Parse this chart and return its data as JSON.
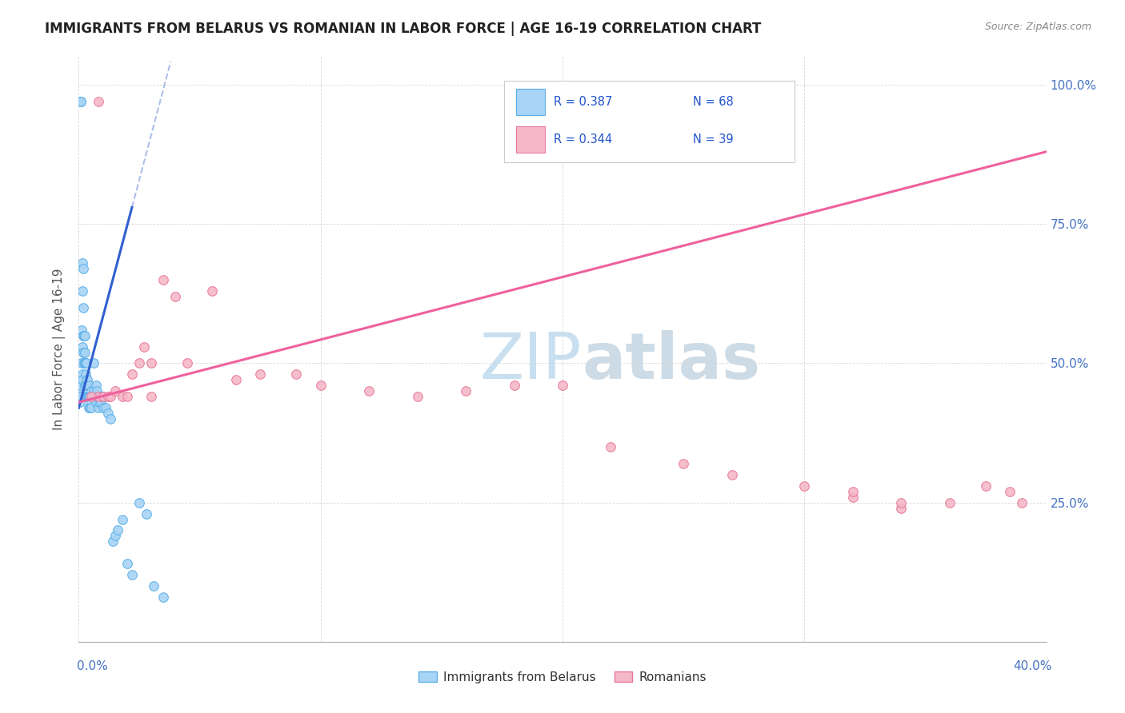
{
  "title": "IMMIGRANTS FROM BELARUS VS ROMANIAN IN LABOR FORCE | AGE 16-19 CORRELATION CHART",
  "source": "Source: ZipAtlas.com",
  "ylabel": "In Labor Force | Age 16-19",
  "legend_belarus": "Immigrants from Belarus",
  "legend_romanian": "Romanians",
  "R_belarus": 0.387,
  "N_belarus": 68,
  "R_romanian": 0.344,
  "N_romanian": 39,
  "belarus_color": "#a8d4f5",
  "belarus_edge": "#5aaee8",
  "romanian_color": "#f5b8c8",
  "romanian_edge": "#e87898",
  "trend_belarus_color": "#3060d0",
  "trend_romanian_color": "#f060a0",
  "legend_text_color": "#2255cc",
  "watermark_color": "#c8dff0",
  "background_color": "#ffffff",
  "grid_color": "#d8d8d8",
  "title_color": "#222222",
  "source_color": "#888888",
  "axis_label_color": "#4472C4",
  "ylabel_color": "#555555",
  "xlim": [
    0.0,
    0.4
  ],
  "ylim": [
    0.0,
    1.05
  ],
  "ytick_vals": [
    0.0,
    0.25,
    0.5,
    0.75,
    1.0
  ],
  "ytick_labels": [
    "",
    "25.0%",
    "50.0%",
    "75.0%",
    "100.0%"
  ],
  "bel_x": [
    0.0002,
    0.0004,
    0.0006,
    0.0006,
    0.0008,
    0.001,
    0.001,
    0.0012,
    0.0012,
    0.0014,
    0.0015,
    0.0015,
    0.0016,
    0.0016,
    0.0018,
    0.0018,
    0.002,
    0.002,
    0.0022,
    0.0022,
    0.0024,
    0.0025,
    0.0025,
    0.0026,
    0.0028,
    0.003,
    0.003,
    0.0032,
    0.0034,
    0.0035,
    0.0036,
    0.0038,
    0.004,
    0.004,
    0.0042,
    0.0044,
    0.0046,
    0.005,
    0.005,
    0.0052,
    0.0055,
    0.006,
    0.006,
    0.0065,
    0.007,
    0.007,
    0.0075,
    0.008,
    0.008,
    0.0085,
    0.009,
    0.009,
    0.0095,
    0.01,
    0.01,
    0.011,
    0.012,
    0.013,
    0.014,
    0.015,
    0.016,
    0.018,
    0.02,
    0.022,
    0.025,
    0.028,
    0.031,
    0.035
  ],
  "bel_y": [
    0.44,
    0.45,
    0.43,
    0.46,
    0.44,
    0.97,
    0.97,
    0.56,
    0.5,
    0.48,
    0.53,
    0.47,
    0.68,
    0.63,
    0.55,
    0.52,
    0.67,
    0.6,
    0.55,
    0.5,
    0.52,
    0.55,
    0.5,
    0.46,
    0.48,
    0.5,
    0.46,
    0.5,
    0.46,
    0.44,
    0.47,
    0.44,
    0.46,
    0.44,
    0.42,
    0.44,
    0.42,
    0.45,
    0.43,
    0.42,
    0.44,
    0.5,
    0.45,
    0.44,
    0.46,
    0.43,
    0.45,
    0.44,
    0.42,
    0.43,
    0.44,
    0.43,
    0.44,
    0.44,
    0.42,
    0.42,
    0.41,
    0.4,
    0.18,
    0.19,
    0.2,
    0.22,
    0.14,
    0.12,
    0.25,
    0.23,
    0.1,
    0.08
  ],
  "rom_x": [
    0.008,
    0.01,
    0.012,
    0.013,
    0.015,
    0.018,
    0.02,
    0.022,
    0.025,
    0.027,
    0.03,
    0.03,
    0.035,
    0.04,
    0.045,
    0.055,
    0.065,
    0.075,
    0.09,
    0.1,
    0.12,
    0.14,
    0.16,
    0.18,
    0.2,
    0.22,
    0.25,
    0.27,
    0.3,
    0.32,
    0.34,
    0.36,
    0.375,
    0.385,
    0.39,
    0.005,
    0.008,
    0.32,
    0.34
  ],
  "rom_y": [
    0.44,
    0.44,
    0.44,
    0.44,
    0.45,
    0.44,
    0.44,
    0.48,
    0.5,
    0.53,
    0.44,
    0.5,
    0.65,
    0.62,
    0.5,
    0.63,
    0.47,
    0.48,
    0.48,
    0.46,
    0.45,
    0.44,
    0.45,
    0.46,
    0.46,
    0.35,
    0.32,
    0.3,
    0.28,
    0.26,
    0.24,
    0.25,
    0.28,
    0.27,
    0.25,
    0.44,
    0.97,
    0.27,
    0.25
  ]
}
